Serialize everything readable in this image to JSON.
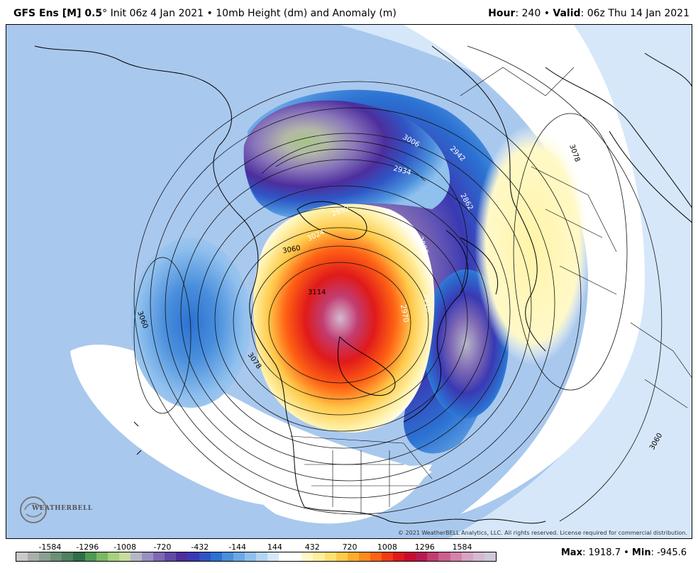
{
  "header": {
    "model": "GFS Ens [M] 0.5",
    "degree": "°",
    "init": "Init 06z 4 Jan 2021",
    "sep": "•",
    "product": "10mb Height (dm) and Anomaly (m)",
    "hour_label": "Hour",
    "hour_value": ": 240",
    "valid_label": "Valid",
    "valid_value": ": 06z Thu 14 Jan 2021"
  },
  "map": {
    "contour_labels": [
      "3006",
      "2934",
      "2862",
      "3078",
      "2952",
      "3024",
      "3060",
      "3114",
      "2970",
      "2916",
      "2988",
      "3060",
      "3078",
      "3060",
      "2942"
    ],
    "copyright": "© 2021 WeatherBELL Analytics, LLC. All rights reserved. License required for commercial distribution.",
    "logo": "WEATHERBELL"
  },
  "colorbar": {
    "ticks": [
      "-1584",
      "-1296",
      "-1008",
      "-720",
      "-432",
      "-144",
      "144",
      "432",
      "720",
      "1008",
      "1296",
      "1584"
    ],
    "colors": [
      "#c9c9c9",
      "#a8b0a8",
      "#8aa090",
      "#6b9076",
      "#4f8060",
      "#2f6e46",
      "#4e9a52",
      "#7bb866",
      "#a6d17e",
      "#c7dca0",
      "#b7b6c9",
      "#9a8fc1",
      "#7e68b4",
      "#6448a7",
      "#4d2e9e",
      "#3a39b3",
      "#2f55c4",
      "#2b72d2",
      "#4a8fdc",
      "#6aa8e6",
      "#8fc0ee",
      "#b3d4f4",
      "#d6e7fa",
      "#ffffff",
      "#ffffff",
      "#fff9c8",
      "#ffef9c",
      "#ffe070",
      "#ffc94a",
      "#ffac2c",
      "#ff8a1c",
      "#ff6214",
      "#f23a12",
      "#e01a1a",
      "#c80c30",
      "#b81a50",
      "#c23c70",
      "#cc5f8e",
      "#d483ab",
      "#d8a2c1",
      "#d4bad2",
      "#cfc9da"
    ],
    "max_label": "Max",
    "max_value": ": 1918.7",
    "sep": "•",
    "min_label": "Min",
    "min_value": ": -945.6"
  }
}
